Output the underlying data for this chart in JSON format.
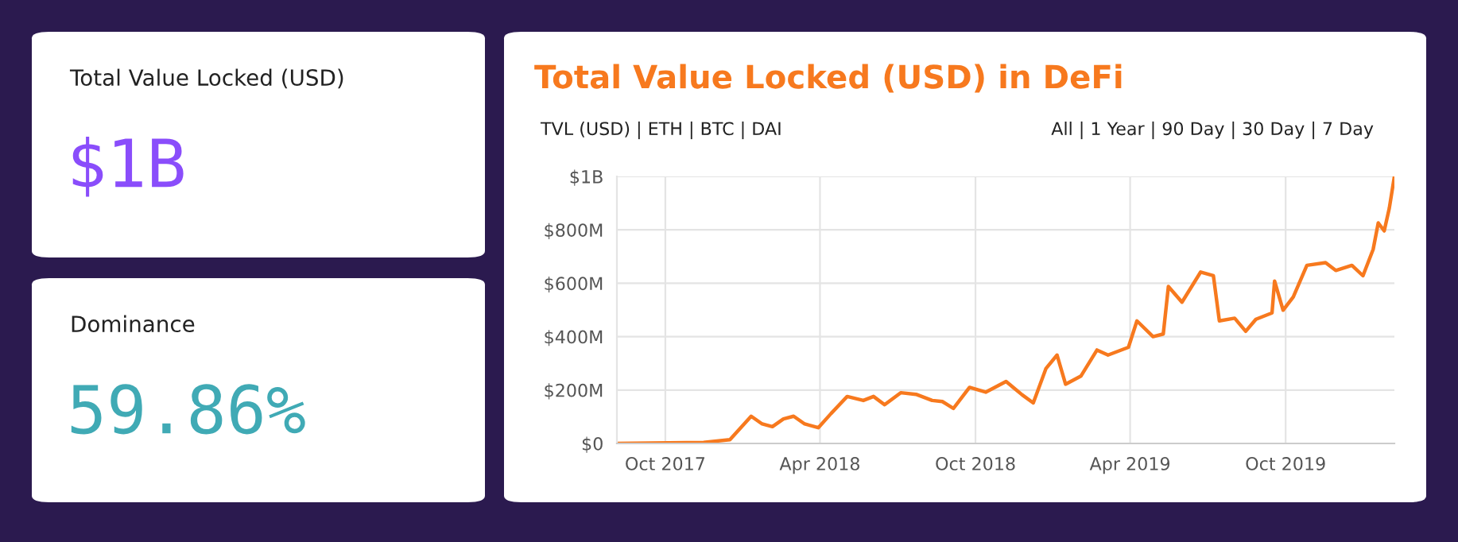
{
  "chart_data": [
    {
      "type": "other",
      "title": "Total Value Locked (USD)",
      "annotations": [
        "$1B"
      ],
      "color": "#8a4dfb"
    },
    {
      "type": "other",
      "title": "Dominance",
      "annotations": [
        "59.86%"
      ],
      "color": "#40aab5"
    },
    {
      "type": "line",
      "title": "Total Value Locked (USD) in DeFi",
      "annotations": [
        "TVL (USD) | ETH | BTC | DAI",
        "All | 1 Year | 90 Day | 30 Day | 7 Day"
      ],
      "x": [
        "2017-08-05",
        "2017-11-15",
        "2017-12-16",
        "2018-01-10",
        "2018-01-23",
        "2018-02-04",
        "2018-02-17",
        "2018-03-01",
        "2018-03-14",
        "2018-03-30",
        "2018-04-14",
        "2018-05-03",
        "2018-05-22",
        "2018-06-03",
        "2018-06-16",
        "2018-07-05",
        "2018-07-23",
        "2018-08-11",
        "2018-08-23",
        "2018-09-05",
        "2018-09-24",
        "2018-10-13",
        "2018-11-06",
        "2018-11-25",
        "2018-12-08",
        "2018-12-23",
        "2019-01-05",
        "2019-01-15",
        "2019-02-02",
        "2019-02-21",
        "2019-03-06",
        "2019-03-30",
        "2019-04-09",
        "2019-04-28",
        "2019-05-10",
        "2019-05-16",
        "2019-06-01",
        "2019-06-23",
        "2019-07-08",
        "2019-07-15",
        "2019-08-02",
        "2019-08-15",
        "2019-08-27",
        "2019-09-15",
        "2019-09-18",
        "2019-09-28",
        "2019-10-10",
        "2019-10-26",
        "2019-11-17",
        "2019-11-29",
        "2019-12-18",
        "2019-12-31",
        "2020-01-12",
        "2020-01-18",
        "2020-01-25",
        "2020-01-31",
        "2020-02-06"
      ],
      "series": [
        {
          "color": "#f7791e",
          "values": [
            0,
            4000000,
            14000000,
            102000000,
            73000000,
            63000000,
            92000000,
            102000000,
            73000000,
            59000000,
            112000000,
            176000000,
            161000000,
            176000000,
            145000000,
            190000000,
            184000000,
            161000000,
            157000000,
            131000000,
            210000000,
            192000000,
            232000000,
            182000000,
            152000000,
            281000000,
            331000000,
            222000000,
            252000000,
            350000000,
            331000000,
            360000000,
            459000000,
            400000000,
            410000000,
            588000000,
            529000000,
            642000000,
            628000000,
            459000000,
            469000000,
            420000000,
            465000000,
            489000000,
            608000000,
            499000000,
            549000000,
            667000000,
            677000000,
            648000000,
            667000000,
            628000000,
            727000000,
            826000000,
            796000000,
            881000000,
            1000000000
          ]
        }
      ],
      "xlim": [
        "2017-08-05",
        "2020-02-06"
      ],
      "xticks": [
        {
          "value": "2017-10-01",
          "label": "Oct 2017"
        },
        {
          "value": "2018-04-01",
          "label": "Apr 2018"
        },
        {
          "value": "2018-10-01",
          "label": "Oct 2018"
        },
        {
          "value": "2019-04-01",
          "label": "Apr 2019"
        },
        {
          "value": "2019-10-01",
          "label": "Oct 2019"
        }
      ],
      "ylim": [
        0,
        1000000000
      ],
      "yticks": [
        {
          "value": 0,
          "label": "$0"
        },
        {
          "value": 200000000,
          "label": "$200M"
        },
        {
          "value": 400000000,
          "label": "$400M"
        },
        {
          "value": 600000000,
          "label": "$600M"
        },
        {
          "value": 800000000,
          "label": "$800M"
        },
        {
          "value": 1000000000,
          "label": "$1B"
        }
      ],
      "grid": true,
      "legend": false,
      "marker": "none",
      "line_style": "solid"
    }
  ]
}
